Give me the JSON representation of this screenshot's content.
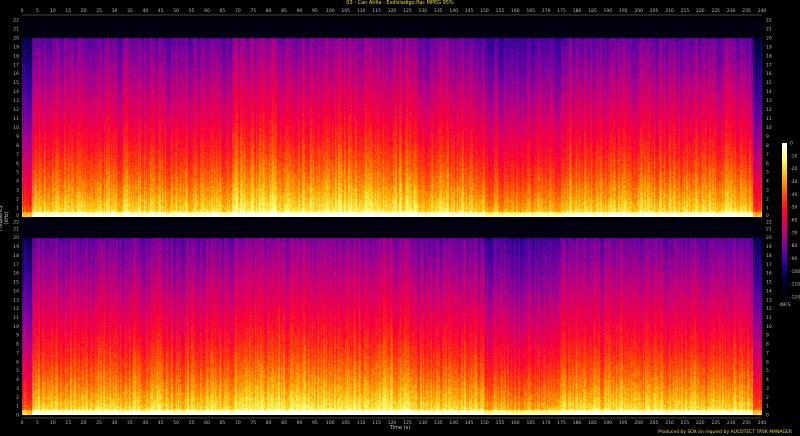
{
  "title": "03 - Can Atilla - Esdisladigo.flac MPEG 95%",
  "footer": "Produced by SOX on request by AUCDTECT TASK MANAGER",
  "chart_data": {
    "type": "heatmap",
    "subtype": "spectrogram",
    "channels": 2,
    "xlabel": "Time (s)",
    "ylabel": "Frequency (kHz)",
    "xlim": [
      0,
      240
    ],
    "ylim": [
      0,
      22
    ],
    "x_ticks": [
      0,
      5,
      10,
      15,
      20,
      25,
      30,
      35,
      40,
      45,
      50,
      55,
      60,
      65,
      70,
      75,
      80,
      85,
      90,
      95,
      100,
      105,
      110,
      115,
      120,
      125,
      130,
      135,
      140,
      145,
      150,
      155,
      160,
      165,
      170,
      175,
      180,
      185,
      190,
      195,
      200,
      205,
      210,
      215,
      220,
      225,
      230,
      235,
      240
    ],
    "y_ticks": [
      0,
      1,
      2,
      3,
      4,
      5,
      6,
      7,
      8,
      9,
      10,
      11,
      12,
      13,
      14,
      15,
      16,
      17,
      18,
      19,
      20,
      21,
      22
    ],
    "frequency_cutoff_khz": 20,
    "colorbar": {
      "label": "dBFS",
      "ticks": [
        0,
        -10,
        -20,
        -30,
        -40,
        -50,
        -60,
        -70,
        -80,
        -90,
        -100,
        -110,
        -120
      ],
      "colormap": [
        "#ffffff",
        "#ffff60",
        "#ffb000",
        "#ff5000",
        "#ff0030",
        "#d00070",
        "#8000a0",
        "#3000a0",
        "#000040",
        "#000000"
      ]
    },
    "grid": false
  }
}
